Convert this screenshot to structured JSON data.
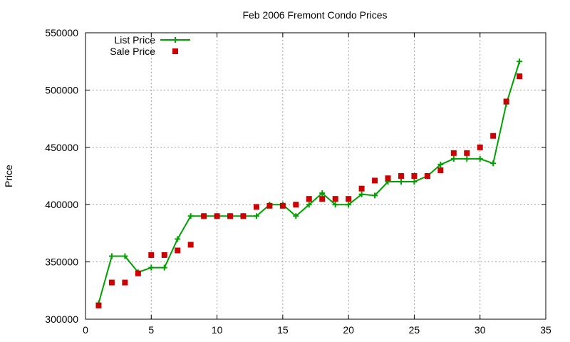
{
  "chart_data": {
    "type": "line",
    "title": "Feb 2006 Fremont Condo Prices",
    "xlabel": "",
    "ylabel": "Price",
    "xlim": [
      0,
      35
    ],
    "ylim": [
      300000,
      550000
    ],
    "xticks": [
      0,
      5,
      10,
      15,
      20,
      25,
      30,
      35
    ],
    "yticks": [
      300000,
      350000,
      400000,
      450000,
      500000,
      550000
    ],
    "xtick_labels": [
      "0",
      "5",
      "10",
      "15",
      "20",
      "25",
      "30",
      "35"
    ],
    "ytick_labels": [
      "300000",
      "350000",
      "400000",
      "450000",
      "500000",
      "550000"
    ],
    "grid": true,
    "legend_position": "top-left",
    "series": [
      {
        "name": "List Price",
        "style": "line-with-plus-markers",
        "color": "#00a000",
        "x": [
          1,
          2,
          3,
          4,
          5,
          6,
          7,
          8,
          9,
          10,
          11,
          12,
          13,
          14,
          15,
          16,
          17,
          18,
          19,
          20,
          21,
          22,
          23,
          24,
          25,
          26,
          27,
          28,
          29,
          30,
          31,
          32,
          33
        ],
        "y": [
          314000,
          355000,
          355000,
          341000,
          345000,
          345000,
          370000,
          390000,
          390000,
          390000,
          390000,
          390000,
          390000,
          400000,
          400000,
          390000,
          400000,
          410000,
          400000,
          400000,
          409000,
          408000,
          420000,
          420000,
          420000,
          425000,
          435000,
          440000,
          440000,
          440000,
          436000,
          488000,
          525000
        ]
      },
      {
        "name": "Sale Price",
        "style": "square-markers",
        "color": "#cc0000",
        "x": [
          1,
          2,
          3,
          4,
          5,
          6,
          7,
          8,
          9,
          10,
          11,
          12,
          13,
          14,
          15,
          16,
          17,
          18,
          19,
          20,
          21,
          22,
          23,
          24,
          25,
          26,
          27,
          28,
          29,
          30,
          31,
          32,
          33
        ],
        "y": [
          312000,
          332000,
          332000,
          340000,
          356000,
          356000,
          360000,
          365000,
          390000,
          390000,
          390000,
          390000,
          398000,
          399000,
          399000,
          400000,
          405000,
          405000,
          405000,
          405000,
          414000,
          421000,
          423000,
          425000,
          425000,
          425000,
          430000,
          445000,
          445000,
          450000,
          460000,
          490000,
          512000
        ]
      }
    ]
  }
}
